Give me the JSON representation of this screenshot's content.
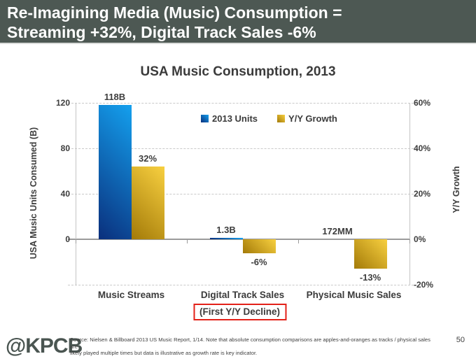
{
  "header": {
    "line1": "Re-Imagining Media (Music) Consumption =",
    "line2": "Streaming +32%, Digital Track Sales -6%",
    "background_color": "#4d5853",
    "text_color": "#ffffff"
  },
  "chart_data": {
    "type": "bar",
    "title": "USA Music Consumption, 2013",
    "categories": [
      "Music Streams",
      "Digital Track Sales",
      "Physical Music Sales"
    ],
    "series": [
      {
        "name": "2013 Units",
        "axis": "left",
        "values": [
          118,
          1.3,
          0.172
        ],
        "value_labels": [
          "118B",
          "1.3B",
          "172MM"
        ],
        "color_dark": "#0a2f7c",
        "color_light": "#14a0ee"
      },
      {
        "name": "Y/Y Growth",
        "axis": "right",
        "values": [
          32,
          -6,
          -13
        ],
        "value_labels": [
          "32%",
          "-6%",
          "-13%"
        ],
        "color_dark": "#a37a08",
        "color_light": "#f8d040"
      }
    ],
    "left_axis": {
      "label": "USA Music Units Consumed (B)",
      "ticks": [
        {
          "value": 120,
          "label": "120"
        },
        {
          "value": 80,
          "label": "80"
        },
        {
          "value": 40,
          "label": "40"
        },
        {
          "value": 0,
          "label": "0"
        }
      ],
      "min": -40,
      "max": 120
    },
    "right_axis": {
      "label": "Y/Y Growth",
      "ticks": [
        {
          "value": 60,
          "label": "60%"
        },
        {
          "value": 40,
          "label": "40%"
        },
        {
          "value": 20,
          "label": "20%"
        },
        {
          "value": 0,
          "label": "0%"
        },
        {
          "value": -20,
          "label": "-20%"
        }
      ],
      "min": -20,
      "max": 60
    },
    "grid": "dashed-horizontal",
    "legend_position": "top-center",
    "annotation": {
      "text": "(First Y/Y Decline)",
      "category_index": 1,
      "border_color": "#e32119"
    }
  },
  "footer": {
    "logo": "@KPCB",
    "source_line1": "Source: Nielsen & Billboard 2013 US Music Report, 1/14. Note that absolute consumption comparisons are apples-and-oranges as tracks / physical sales are",
    "source_line2": "likely played multiple times but data is illustrative as growth rate is key indicator.",
    "page_number": "50"
  }
}
